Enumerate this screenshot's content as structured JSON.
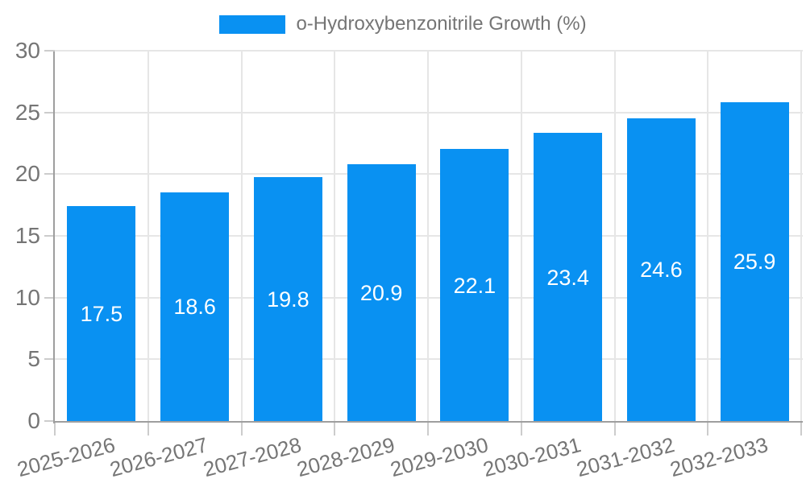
{
  "legend": {
    "label": "o-Hydroxybenzonitrile Growth (%)"
  },
  "chart_data": {
    "type": "bar",
    "title": "",
    "xlabel": "",
    "ylabel": "",
    "categories": [
      "2025-2026",
      "2026-2027",
      "2027-2028",
      "2028-2029",
      "2029-2030",
      "2030-2031",
      "2031-2032",
      "2032-2033"
    ],
    "series": [
      {
        "name": "o-Hydroxybenzonitrile Growth (%)",
        "values": [
          17.5,
          18.6,
          19.8,
          20.9,
          22.1,
          23.4,
          24.6,
          25.9
        ]
      }
    ],
    "value_label_decimals": 1,
    "value_label_position": "inside-center",
    "ylim": [
      0,
      30
    ],
    "yticks": [
      0,
      5,
      10,
      15,
      20,
      25,
      30
    ],
    "grid": true,
    "legend_position": "top",
    "x_tick_rotation_deg": -15
  },
  "colors": {
    "background": "#ffffff",
    "bar": "#0991f2",
    "axis_line": "#9e9e9e",
    "gridline": "#e6e6e6",
    "tick_mark": "#cccccc",
    "tick_label": "#757575",
    "legend_text": "#757575",
    "bar_value_text": "#ffffff"
  }
}
